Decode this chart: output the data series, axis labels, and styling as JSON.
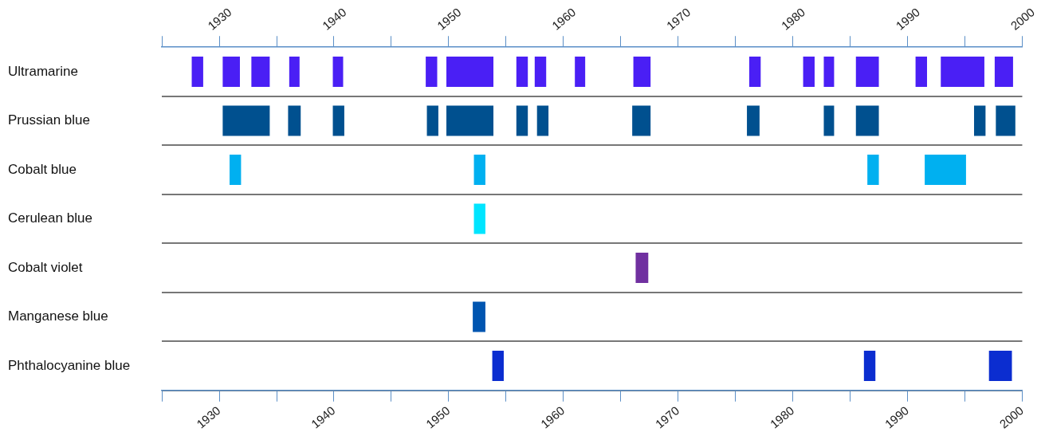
{
  "chart_data": {
    "type": "bar",
    "orientation": "horizontal",
    "categories": [
      "Ultramarine",
      "Prussian blue",
      "Cobalt blue",
      "Cerulean blue",
      "Cobalt violet",
      "Manganese blue",
      "Phthalocyanine blue"
    ],
    "xlim": [
      1925,
      2000
    ],
    "xticks": [
      {
        "value": 1925,
        "label": null
      },
      1930,
      {
        "value": 1935,
        "label": null
      },
      1940,
      {
        "value": 1945,
        "label": null
      },
      1950,
      {
        "value": 1955,
        "label": null
      },
      1960,
      {
        "value": 1965,
        "label": null
      },
      1970,
      {
        "value": 1975,
        "label": null
      },
      1980,
      {
        "value": 1985,
        "label": null
      },
      1990,
      {
        "value": 1995,
        "label": null
      },
      2000
    ],
    "x2lim": [
      1925,
      2000
    ],
    "x2ticks": [
      {
        "value": 1925,
        "label": null
      },
      1930,
      {
        "value": 1935,
        "label": null
      },
      1940,
      {
        "value": 1945,
        "label": null
      },
      1950,
      {
        "value": 1955,
        "label": null
      },
      1960,
      {
        "value": 1965,
        "label": null
      },
      1970,
      {
        "value": 1975,
        "label": null
      },
      1980,
      {
        "value": 1985,
        "label": null
      },
      1990,
      {
        "value": 1995,
        "label": null
      },
      2000
    ],
    "grid": "y",
    "legend": false,
    "series": [
      {
        "colors": [
          "#4a1ff5",
          "#00508f",
          "#00b0f0",
          "#00e5ff",
          "#7030a0",
          "#0055b0",
          "#0b2dd0"
        ],
        "base": [
          1927.6,
          1930.3,
          1930.9,
          1952.2,
          1966.3,
          1952.1,
          1953.8
        ],
        "values": [
          1,
          4.1,
          1,
          1,
          1.1,
          1.1,
          1
        ]
      },
      {
        "colors": [
          "#4a1ff5",
          "#00508f",
          "#00b0f0",
          "#00e5ff",
          "#7030a0",
          "#0055b0",
          "#0b2dd0"
        ],
        "base": [
          1930.3,
          1936,
          1952.2,
          null,
          null,
          null,
          1986.2
        ],
        "values": [
          1.5,
          1.1,
          1,
          null,
          null,
          null,
          1
        ]
      },
      {
        "colors": [
          "#4a1ff5",
          "#00508f",
          "#00b0f0",
          "#00e5ff",
          "#7030a0",
          "#0055b0",
          "#0b2dd0"
        ],
        "base": [
          1932.8,
          1939.9,
          1986.5,
          null,
          null,
          null,
          1997.1
        ],
        "values": [
          1.6,
          1,
          1,
          null,
          null,
          null,
          2
        ]
      },
      {
        "colors": [
          "#4a1ff5",
          "#00508f",
          "#00b0f0",
          "#00e5ff",
          "#7030a0",
          "#0055b0",
          "#0b2dd0"
        ],
        "base": [
          1936.1,
          1948.1,
          1991.5,
          null,
          null,
          null,
          null
        ],
        "values": [
          0.9,
          1,
          3.6,
          null,
          null,
          null,
          null
        ]
      },
      {
        "colors": [
          "#4a1ff5",
          "#00508f",
          "#00b0f0",
          "#00e5ff",
          "#7030a0",
          "#0055b0",
          "#0b2dd0"
        ],
        "base": [
          1939.9,
          1949.8,
          null,
          null,
          null,
          null,
          null
        ],
        "values": [
          0.9,
          4.1,
          null,
          null,
          null,
          null,
          null
        ]
      },
      {
        "colors": [
          "#4a1ff5",
          "#00508f",
          "#00b0f0",
          "#00e5ff",
          "#7030a0",
          "#0055b0",
          "#0b2dd0"
        ],
        "base": [
          1948,
          1955.9,
          null,
          null,
          null,
          null,
          null
        ],
        "values": [
          1,
          1,
          null,
          null,
          null,
          null,
          null
        ]
      },
      {
        "colors": [
          "#4a1ff5",
          "#00508f",
          "#00b0f0",
          "#00e5ff",
          "#7030a0",
          "#0055b0",
          "#0b2dd0"
        ],
        "base": [
          1949.8,
          1957.7,
          null,
          null,
          null,
          null,
          null
        ],
        "values": [
          4.1,
          1,
          null,
          null,
          null,
          null,
          null
        ]
      },
      {
        "colors": [
          "#4a1ff5",
          "#00508f",
          "#00b0f0",
          "#00e5ff",
          "#7030a0",
          "#0055b0",
          "#0b2dd0"
        ],
        "base": [
          1955.9,
          1966,
          null,
          null,
          null,
          null,
          null
        ],
        "values": [
          1,
          1.6,
          null,
          null,
          null,
          null,
          null
        ]
      },
      {
        "colors": [
          "#4a1ff5",
          "#00508f",
          "#00b0f0",
          "#00e5ff",
          "#7030a0",
          "#0055b0",
          "#0b2dd0"
        ],
        "base": [
          1957.5,
          1976,
          null,
          null,
          null,
          null,
          null
        ],
        "values": [
          1,
          1.1,
          null,
          null,
          null,
          null,
          null
        ]
      },
      {
        "colors": [
          "#4a1ff5",
          "#00508f",
          "#00b0f0",
          "#00e5ff",
          "#7030a0",
          "#0055b0",
          "#0b2dd0"
        ],
        "base": [
          1961,
          1982.7,
          null,
          null,
          null,
          null,
          null
        ],
        "values": [
          0.9,
          0.9,
          null,
          null,
          null,
          null,
          null
        ]
      },
      {
        "colors": [
          "#4a1ff5",
          "#00508f",
          "#00b0f0",
          "#00e5ff",
          "#7030a0",
          "#0055b0",
          "#0b2dd0"
        ],
        "base": [
          1966.1,
          1985.5,
          null,
          null,
          null,
          null,
          null
        ],
        "values": [
          1.5,
          2,
          null,
          null,
          null,
          null,
          null
        ]
      },
      {
        "colors": [
          "#4a1ff5",
          "#00508f",
          "#00b0f0",
          "#00e5ff",
          "#7030a0",
          "#0055b0",
          "#0b2dd0"
        ],
        "base": [
          1976.2,
          1995.8,
          null,
          null,
          null,
          null,
          null
        ],
        "values": [
          1,
          1,
          null,
          null,
          null,
          null,
          null
        ]
      },
      {
        "colors": [
          "#4a1ff5",
          "#00508f",
          "#00b0f0",
          "#00e5ff",
          "#7030a0",
          "#0055b0",
          "#0b2dd0"
        ],
        "base": [
          1980.9,
          1997.7,
          null,
          null,
          null,
          null,
          null
        ],
        "values": [
          1,
          1.7,
          null,
          null,
          null,
          null,
          null
        ]
      },
      {
        "colors": [
          "#4a1ff5",
          "#00508f",
          "#00b0f0",
          "#00e5ff",
          "#7030a0",
          "#0055b0",
          "#0b2dd0"
        ],
        "base": [
          1982.7,
          null,
          null,
          null,
          null,
          null,
          null
        ],
        "values": [
          0.9,
          null,
          null,
          null,
          null,
          null,
          null
        ]
      },
      {
        "colors": [
          "#4a1ff5",
          "#00508f",
          "#00b0f0",
          "#00e5ff",
          "#7030a0",
          "#0055b0",
          "#0b2dd0"
        ],
        "base": [
          1985.5,
          null,
          null,
          null,
          null,
          null,
          null
        ],
        "values": [
          2,
          null,
          null,
          null,
          null,
          null,
          null
        ]
      },
      {
        "colors": [
          "#4a1ff5",
          "#00508f",
          "#00b0f0",
          "#00e5ff",
          "#7030a0",
          "#0055b0",
          "#0b2dd0"
        ],
        "base": [
          1990.7,
          null,
          null,
          null,
          null,
          null,
          null
        ],
        "values": [
          1,
          null,
          null,
          null,
          null,
          null,
          null
        ]
      },
      {
        "colors": [
          "#4a1ff5",
          "#00508f",
          "#00b0f0",
          "#00e5ff",
          "#7030a0",
          "#0055b0",
          "#0b2dd0"
        ],
        "base": [
          1992.9,
          null,
          null,
          null,
          null,
          null,
          null
        ],
        "values": [
          3.8,
          null,
          null,
          null,
          null,
          null,
          null
        ]
      },
      {
        "colors": [
          "#4a1ff5",
          "#00508f",
          "#00b0f0",
          "#00e5ff",
          "#7030a0",
          "#0055b0",
          "#0b2dd0"
        ],
        "base": [
          1997.6,
          null,
          null,
          null,
          null,
          null,
          null
        ],
        "values": [
          1.6,
          null,
          null,
          null,
          null,
          null,
          null
        ]
      }
    ]
  }
}
